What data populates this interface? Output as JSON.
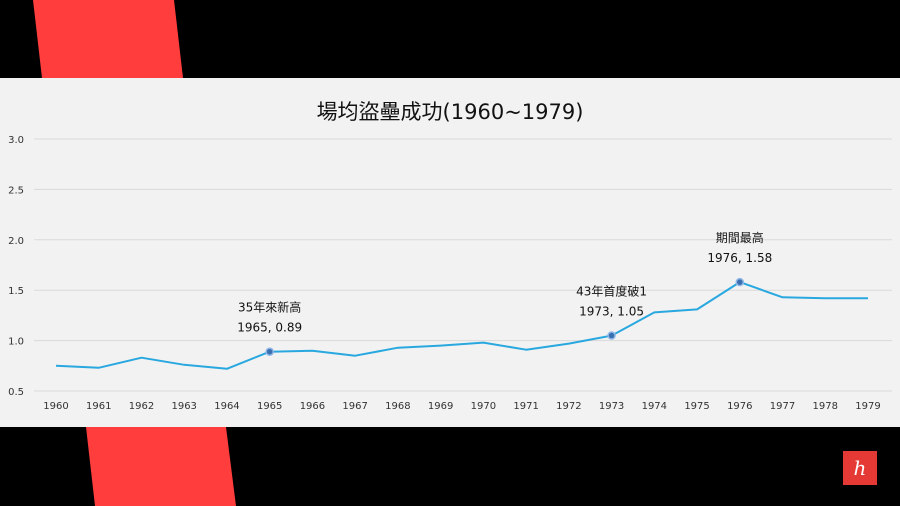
{
  "colors": {
    "accent_red": "#ff3d3d",
    "line": "#29a8e0",
    "marker": "#3a6fb0",
    "panel_bg": "#f2f2f2",
    "background": "#000000"
  },
  "logo_icon": "brand-logo-icon",
  "chart_data": {
    "type": "line",
    "title": "場均盜壘成功(1960~1979)",
    "xlabel": "",
    "ylabel": "",
    "categories": [
      "1960",
      "1961",
      "1962",
      "1963",
      "1964",
      "1965",
      "1966",
      "1967",
      "1968",
      "1969",
      "1970",
      "1971",
      "1972",
      "1973",
      "1974",
      "1975",
      "1976",
      "1977",
      "1978",
      "1979"
    ],
    "series": [
      {
        "values": [
          0.75,
          0.73,
          0.83,
          0.76,
          0.72,
          0.89,
          0.9,
          0.85,
          0.93,
          0.95,
          0.98,
          0.91,
          0.97,
          1.05,
          1.28,
          1.31,
          1.58,
          1.43,
          1.42,
          1.42
        ]
      }
    ],
    "ylim": [
      0.5,
      3.0
    ],
    "yticks": [
      "0.5",
      "1.0",
      "1.5",
      "2.0",
      "2.5",
      "3.0"
    ],
    "ytick_values": [
      0.5,
      1.0,
      1.5,
      2.0,
      2.5,
      3.0
    ],
    "grid": true,
    "highlights": [
      {
        "category": "1965",
        "value": 0.89,
        "label": "35年來新高",
        "coords": "1965, 0.89"
      },
      {
        "category": "1973",
        "value": 1.05,
        "label": "43年首度破1",
        "coords": "1973, 1.05"
      },
      {
        "category": "1976",
        "value": 1.58,
        "label": "期間最高",
        "coords": "1976, 1.58"
      }
    ]
  }
}
